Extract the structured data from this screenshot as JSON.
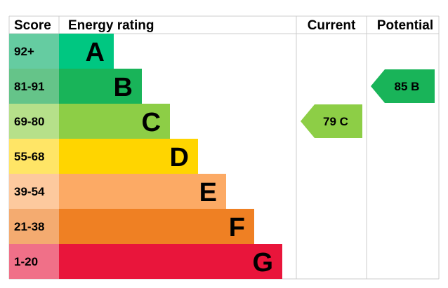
{
  "chart_data": {
    "type": "table",
    "headers": {
      "score": "Score",
      "rating": "Energy rating",
      "current": "Current",
      "potential": "Potential"
    },
    "bands": [
      {
        "score": "92+",
        "letter": "A",
        "color": "#00c781",
        "score_bg": "#65cca1"
      },
      {
        "score": "81-91",
        "letter": "B",
        "color": "#19b459",
        "score_bg": "#65c489"
      },
      {
        "score": "69-80",
        "letter": "C",
        "color": "#8dce46",
        "score_bg": "#b6e08a"
      },
      {
        "score": "55-68",
        "letter": "D",
        "color": "#ffd500",
        "score_bg": "#ffe566"
      },
      {
        "score": "39-54",
        "letter": "E",
        "color": "#fcaa65",
        "score_bg": "#fdc99e"
      },
      {
        "score": "21-38",
        "letter": "F",
        "color": "#ef8023",
        "score_bg": "#f4ab70"
      },
      {
        "score": "1-20",
        "letter": "G",
        "color": "#e9153b",
        "score_bg": "#f07088"
      }
    ],
    "current": {
      "value": 79,
      "letter": "C",
      "label": "79 C",
      "color": "#8dce46"
    },
    "potential": {
      "value": 85,
      "letter": "B",
      "label": "85 B",
      "color": "#19b459"
    }
  }
}
